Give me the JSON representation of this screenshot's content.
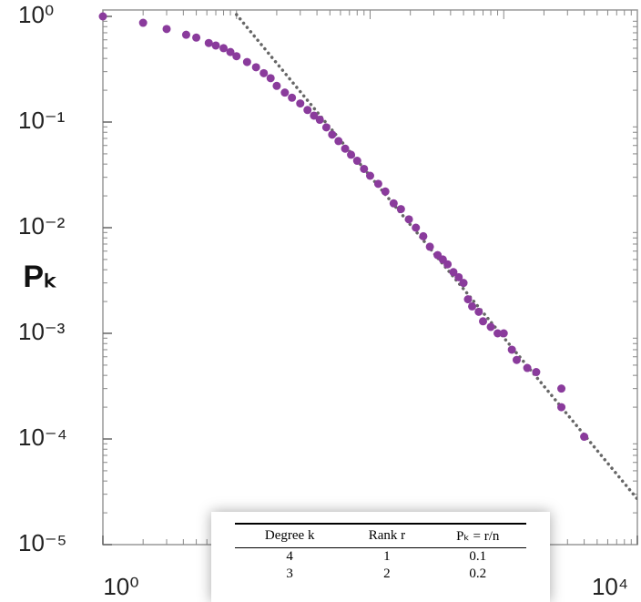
{
  "chart_data": {
    "type": "scatter",
    "log_x": true,
    "log_y": true,
    "ylabel": "Pₖ",
    "xlim": [
      1,
      10000
    ],
    "ylim": [
      1e-05,
      1.15
    ],
    "xticks": [
      {
        "value": 1,
        "label": "10⁰"
      },
      {
        "value": 10000,
        "label": "10⁴"
      }
    ],
    "yticks": [
      {
        "value": 1,
        "label": "10⁰"
      },
      {
        "value": 0.1,
        "label": "10⁻¹"
      },
      {
        "value": 0.01,
        "label": "10⁻²"
      },
      {
        "value": 0.001,
        "label": "10⁻³"
      },
      {
        "value": 0.0001,
        "label": "10⁻⁴"
      },
      {
        "value": 1e-05,
        "label": "10⁻⁵"
      }
    ],
    "series": [
      {
        "color": "#8a3b9c",
        "x": [
          1,
          2,
          3,
          4.2,
          5,
          6.2,
          7,
          8,
          9,
          10,
          12,
          14,
          16,
          18,
          20,
          23,
          26,
          30,
          34,
          38,
          42,
          47,
          52,
          58,
          65,
          72,
          80,
          90,
          100,
          115,
          130,
          150,
          170,
          195,
          220,
          250,
          280,
          320,
          350,
          380,
          420,
          460,
          500,
          540,
          580,
          650,
          700,
          800,
          900,
          1000,
          1150,
          1250,
          1500,
          1750,
          2700,
          2700,
          4000
        ],
        "values": [
          1,
          0.87,
          0.76,
          0.67,
          0.63,
          0.56,
          0.53,
          0.5,
          0.46,
          0.42,
          0.37,
          0.33,
          0.29,
          0.26,
          0.22,
          0.19,
          0.17,
          0.15,
          0.13,
          0.115,
          0.105,
          0.089,
          0.076,
          0.066,
          0.056,
          0.049,
          0.043,
          0.036,
          0.031,
          0.026,
          0.022,
          0.017,
          0.015,
          0.012,
          0.01,
          0.0083,
          0.0066,
          0.0055,
          0.005,
          0.0045,
          0.0038,
          0.0034,
          0.003,
          0.0021,
          0.0018,
          0.0016,
          0.0013,
          0.00115,
          0.001,
          0.001,
          0.0007,
          0.00056,
          0.00047,
          0.00043,
          0.0003,
          0.0002,
          0.000105
        ]
      }
    ],
    "fit": {
      "color": "#666666",
      "x": [
        10,
        10000
      ],
      "values": [
        1.04,
        2.7e-05
      ]
    }
  },
  "table": {
    "header": [
      "Degree k",
      "Rank r",
      "Pₖ = r/n"
    ],
    "rows": [
      [
        "4",
        "1",
        "0.1"
      ],
      [
        "3",
        "2",
        "0.2"
      ]
    ]
  }
}
